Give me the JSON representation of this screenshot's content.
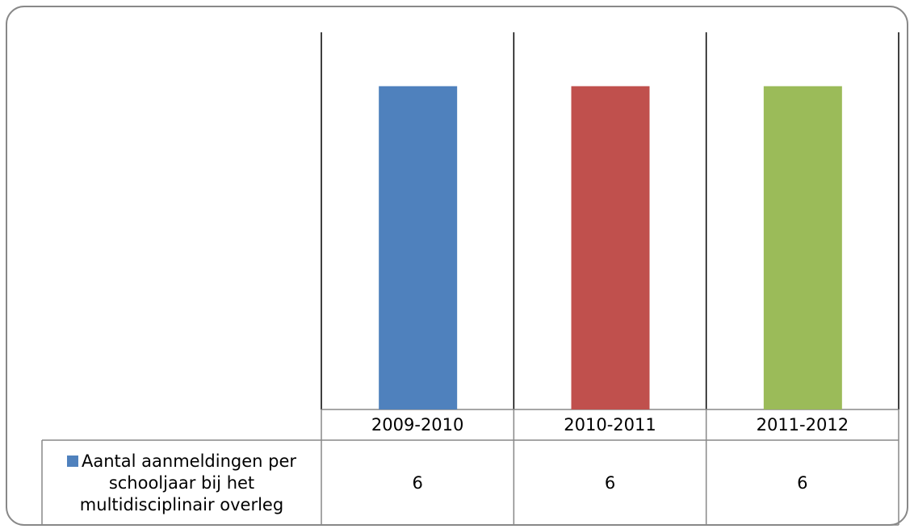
{
  "chart_data": {
    "type": "bar",
    "categories": [
      "2009-2010",
      "2010-2011",
      "2011-2012"
    ],
    "series": [
      {
        "name": "Aantal aanmeldingen per schooljaar bij het multidisciplinair overleg",
        "color": "#4f81bd",
        "colors": [
          "#4f81bd",
          "#c0504d",
          "#9bbb59"
        ],
        "values": [
          6,
          6,
          6
        ]
      }
    ],
    "ylim": [
      0,
      7
    ],
    "data_table": true
  }
}
